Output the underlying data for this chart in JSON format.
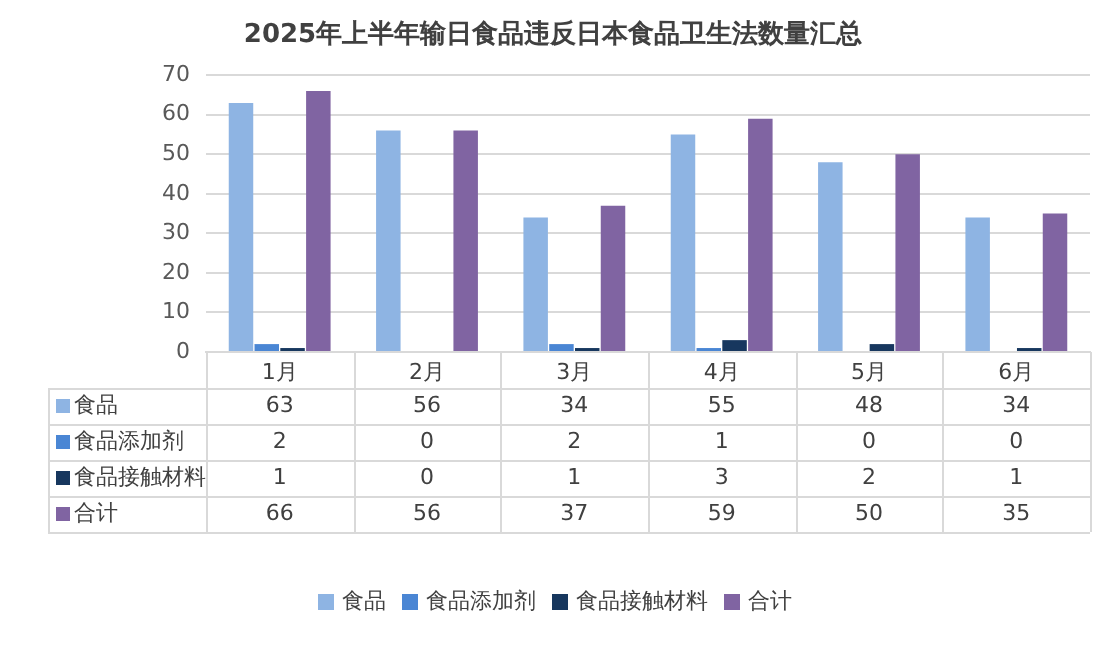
{
  "chart_data": {
    "type": "bar",
    "title": "2025年上半年输日食品违反日本食品卫生法数量汇总",
    "categories": [
      "1月",
      "2月",
      "3月",
      "4月",
      "5月",
      "6月"
    ],
    "series": [
      {
        "name": "食品",
        "color": "#8eb4e3",
        "values": [
          63,
          56,
          34,
          55,
          48,
          34
        ]
      },
      {
        "name": "食品添加剂",
        "color": "#4a86d4",
        "values": [
          2,
          0,
          2,
          1,
          0,
          0
        ]
      },
      {
        "name": "食品接触材料",
        "color": "#17375e",
        "values": [
          1,
          0,
          1,
          3,
          2,
          1
        ]
      },
      {
        "name": "合计",
        "color": "#8064a2",
        "values": [
          66,
          56,
          37,
          59,
          50,
          35
        ]
      }
    ],
    "ylim": [
      0,
      70
    ],
    "yticks": [
      0,
      10,
      20,
      30,
      40,
      50,
      60,
      70
    ],
    "grid": "y",
    "legend": "bottom",
    "data_labels": true
  }
}
